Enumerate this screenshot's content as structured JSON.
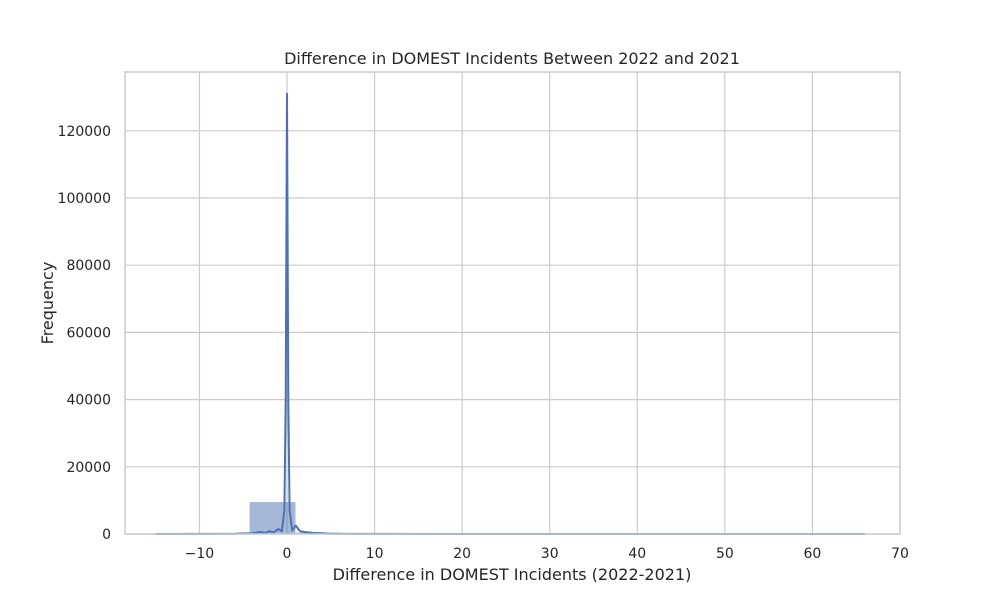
{
  "chart_data": {
    "type": "bar",
    "title": "Difference in DOMEST Incidents Between 2022 and 2021",
    "xlabel": "Difference in DOMEST Incidents (2022-2021)",
    "ylabel": "Frequency",
    "xlim": [
      -18.5,
      70
    ],
    "ylim": [
      0,
      137500
    ],
    "grid": true,
    "x_ticks": [
      -10,
      0,
      10,
      20,
      30,
      40,
      50,
      60,
      70
    ],
    "x_tick_labels": [
      "−10",
      "0",
      "10",
      "20",
      "30",
      "40",
      "50",
      "60",
      "70"
    ],
    "y_ticks": [
      0,
      20000,
      40000,
      60000,
      80000,
      100000,
      120000
    ],
    "y_tick_labels": [
      "0",
      "20000",
      "40000",
      "60000",
      "80000",
      "100000",
      "120000"
    ],
    "histogram": {
      "bins": [
        {
          "x0": -15,
          "x1": -9.8,
          "count": 120
        },
        {
          "x0": -9.8,
          "x1": -4.3,
          "count": 300
        },
        {
          "x0": -4.3,
          "x1": 1.0,
          "count": 9600
        },
        {
          "x0": 1.0,
          "x1": 6.2,
          "count": 500
        },
        {
          "x0": 6.2,
          "x1": 11.4,
          "count": 80
        },
        {
          "x0": 11.4,
          "x1": 16.6,
          "count": 40
        },
        {
          "x0": 16.6,
          "x1": 21.8,
          "count": 25
        },
        {
          "x0": 21.8,
          "x1": 27.0,
          "count": 15
        },
        {
          "x0": 27.0,
          "x1": 32.2,
          "count": 10
        },
        {
          "x0": 32.2,
          "x1": 37.4,
          "count": 8
        },
        {
          "x0": 37.4,
          "x1": 42.6,
          "count": 6
        },
        {
          "x0": 42.6,
          "x1": 47.8,
          "count": 5
        },
        {
          "x0": 47.8,
          "x1": 53.0,
          "count": 4
        },
        {
          "x0": 53.0,
          "x1": 58.2,
          "count": 3
        },
        {
          "x0": 58.2,
          "x1": 63.4,
          "count": 2
        },
        {
          "x0": 63.4,
          "x1": 66.0,
          "count": 2
        }
      ]
    },
    "kde": {
      "x": [
        -15,
        -6,
        -4,
        -3,
        -2.5,
        -2,
        -1.5,
        -1.0,
        -0.6,
        -0.3,
        -0.15,
        0,
        0.15,
        0.3,
        0.6,
        1.0,
        1.5,
        2.0,
        3.0,
        4.0,
        5.0,
        10,
        20,
        40,
        66
      ],
      "y": [
        0,
        50,
        200,
        600,
        300,
        800,
        500,
        1500,
        800,
        7000,
        40000,
        131000,
        40000,
        7000,
        1000,
        2500,
        800,
        600,
        300,
        200,
        80,
        20,
        5,
        0,
        0
      ]
    },
    "colors": {
      "bar_fill": "#4c72b0",
      "bar_opacity": 0.5,
      "line": "#4c72b0",
      "grid": "#cccccc",
      "frame": "#cccccc",
      "text": "#262626"
    }
  }
}
